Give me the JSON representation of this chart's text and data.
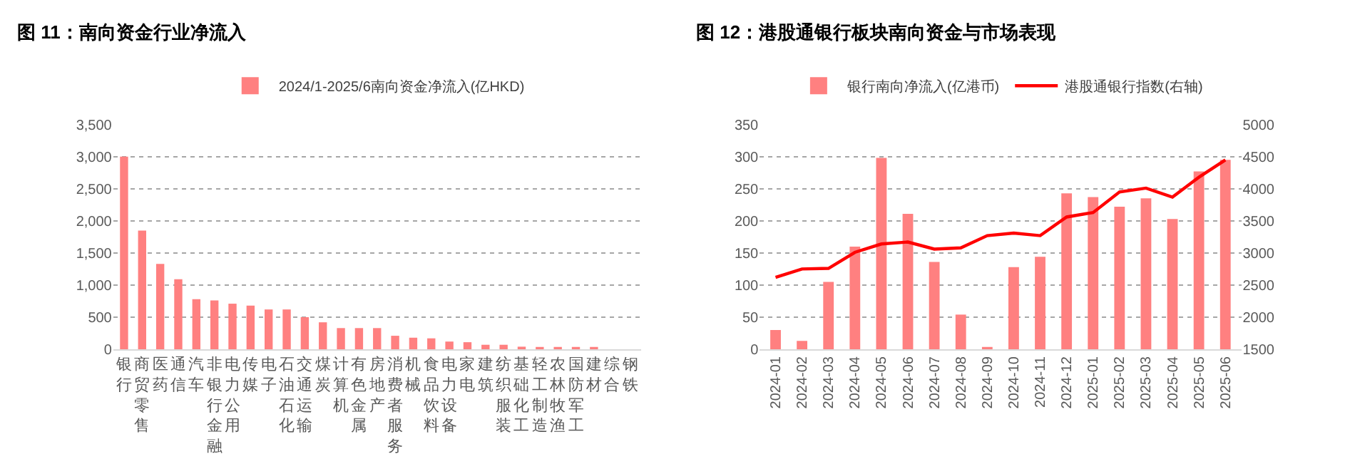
{
  "chart_data": [
    {
      "type": "bar",
      "title": "图 11：南向资金行业净流入",
      "categories": [
        "银行",
        "商贸零售",
        "医药",
        "通信",
        "汽车",
        "非银行金融",
        "电力公用",
        "传媒",
        "电子",
        "石油石化",
        "交通运输",
        "煤炭",
        "计算机",
        "有色金属",
        "房地产",
        "消费者服务",
        "机械",
        "食品饮料",
        "电力设备",
        "家电",
        "建筑",
        "纺织服装",
        "基础化工",
        "轻工制造",
        "农林牧渔",
        "国防军工",
        "建材",
        "综合",
        "钢铁"
      ],
      "series": [
        {
          "name": "2024/1-2025/6南向资金净流入(亿HKD)",
          "color": "#ff8080",
          "values": [
            3000,
            1850,
            1330,
            1090,
            780,
            760,
            710,
            680,
            620,
            620,
            500,
            420,
            330,
            330,
            330,
            210,
            180,
            170,
            120,
            110,
            70,
            70,
            40,
            35,
            30,
            20,
            15,
            0,
            0
          ]
        }
      ],
      "ylim": [
        0,
        3500
      ],
      "yticks": [
        0,
        500,
        {
          "value": 1000,
          "label": "1,000"
        },
        {
          "value": 1500,
          "label": "1,500"
        },
        {
          "value": 2000,
          "label": "2,000"
        },
        {
          "value": 2500,
          "label": "2,500"
        },
        {
          "value": 3000,
          "label": "3,000"
        },
        {
          "value": 3500,
          "label": "3,500"
        }
      ],
      "grid": "y",
      "legend": "top"
    },
    {
      "type": "bar",
      "title": "图 12：港股通银行板块南向资金与市场表现",
      "categories": [
        "2024-01",
        "2024-02",
        "2024-03",
        "2024-04",
        "2024-05",
        "2024-06",
        "2024-07",
        "2024-08",
        "2024-09",
        "2024-10",
        "2024-11",
        "2024-12",
        "2025-01",
        "2025-02",
        "2025-03",
        "2025-04",
        "2025-05",
        "2025-06"
      ],
      "series": [
        {
          "name": "银行南向净流入(亿港币)",
          "color": "#ff8080",
          "values": [
            30,
            13,
            105,
            160,
            298,
            211,
            136,
            54,
            3,
            128,
            144,
            243,
            237,
            222,
            235,
            203,
            277,
            295
          ]
        },
        {
          "name": "港股通银行指数(右轴)",
          "type": "line",
          "axis": "y2",
          "color": "#ff0000",
          "values": [
            2620,
            2750,
            2760,
            3010,
            3140,
            3170,
            3060,
            3080,
            3270,
            3310,
            3270,
            3560,
            3630,
            3950,
            4010,
            3870,
            4180,
            4450
          ]
        }
      ],
      "ylim": [
        0,
        350
      ],
      "yticks": [
        0,
        50,
        100,
        150,
        200,
        250,
        300,
        350
      ],
      "y2lim": [
        1500,
        5000
      ],
      "y2ticks": [
        1500,
        2000,
        2500,
        3000,
        3500,
        4000,
        4500,
        5000
      ],
      "grid": "y",
      "legend": "top",
      "marker": "none"
    }
  ]
}
